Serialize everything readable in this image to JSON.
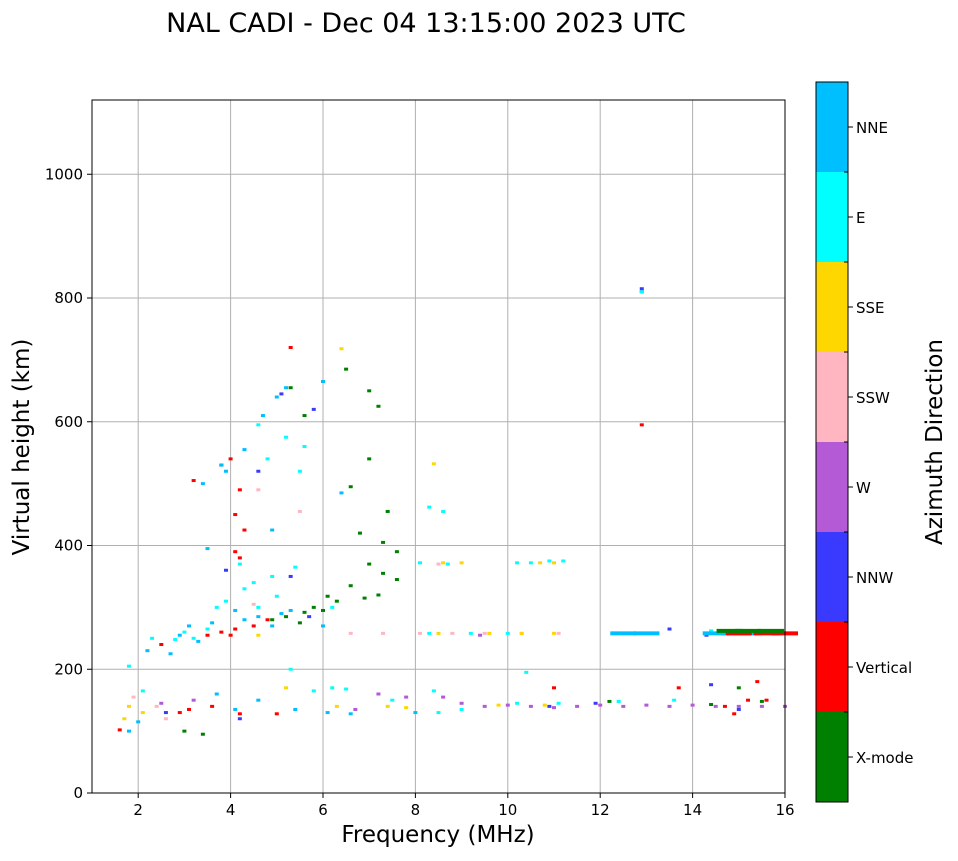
{
  "chart_data": {
    "type": "scatter",
    "title": "NAL CADI - Dec 04 13:15:00 2023 UTC",
    "xlabel": "Frequency (MHz)",
    "ylabel": "Virtual height (km)",
    "xlim": [
      1,
      16
    ],
    "ylim": [
      0,
      1120
    ],
    "xticks": [
      2,
      4,
      6,
      8,
      10,
      12,
      14,
      16
    ],
    "yticks": [
      0,
      200,
      400,
      600,
      800,
      1000
    ],
    "grid": true,
    "colorbar": {
      "label": "Azimuth Direction",
      "categories": [
        {
          "label": "X-mode",
          "color": "#008000"
        },
        {
          "label": "Vertical",
          "color": "#ff0000"
        },
        {
          "label": "NNW",
          "color": "#3a3aff"
        },
        {
          "label": "W",
          "color": "#b45ad6"
        },
        {
          "label": "SSW",
          "color": "#ffb6c1"
        },
        {
          "label": "SSE",
          "color": "#ffd700"
        },
        {
          "label": "E",
          "color": "#00ffff"
        },
        {
          "label": "NNE",
          "color": "#00bfff"
        }
      ]
    },
    "series": [
      {
        "name": "X-mode",
        "points": [
          [
            5.3,
            655
          ],
          [
            5.6,
            610
          ],
          [
            6.5,
            685
          ],
          [
            7.0,
            650
          ],
          [
            7.2,
            625
          ],
          [
            7.0,
            540
          ],
          [
            6.6,
            495
          ],
          [
            7.4,
            455
          ],
          [
            6.8,
            420
          ],
          [
            7.3,
            405
          ],
          [
            7.6,
            390
          ],
          [
            7.0,
            370
          ],
          [
            7.3,
            355
          ],
          [
            7.6,
            345
          ],
          [
            6.6,
            335
          ],
          [
            7.2,
            320
          ],
          [
            6.9,
            315
          ],
          [
            6.3,
            310
          ],
          [
            5.8,
            300
          ],
          [
            6.0,
            295
          ],
          [
            5.6,
            292
          ],
          [
            5.2,
            285
          ],
          [
            4.9,
            280
          ],
          [
            5.5,
            275
          ],
          [
            6.1,
            318
          ],
          [
            3.0,
            100
          ],
          [
            3.4,
            95
          ],
          [
            14.4,
            143
          ],
          [
            15.0,
            170
          ],
          [
            15.5,
            148
          ],
          [
            12.2,
            148
          ]
        ]
      },
      {
        "name": "Vertical",
        "points": [
          [
            5.3,
            720
          ],
          [
            12.9,
            595
          ],
          [
            4.0,
            540
          ],
          [
            3.8,
            530
          ],
          [
            3.2,
            505
          ],
          [
            4.2,
            490
          ],
          [
            4.1,
            450
          ],
          [
            4.3,
            425
          ],
          [
            4.1,
            390
          ],
          [
            4.2,
            380
          ],
          [
            2.5,
            240
          ],
          [
            3.5,
            255
          ],
          [
            3.8,
            260
          ],
          [
            4.1,
            265
          ],
          [
            4.5,
            270
          ],
          [
            4.8,
            280
          ],
          [
            4.0,
            255
          ],
          [
            1.6,
            102
          ],
          [
            2.9,
            130
          ],
          [
            3.1,
            135
          ],
          [
            4.2,
            128
          ],
          [
            5.0,
            128
          ],
          [
            3.6,
            140
          ],
          [
            14.9,
            128
          ],
          [
            15.2,
            150
          ],
          [
            15.6,
            150
          ],
          [
            14.7,
            140
          ],
          [
            13.7,
            170
          ],
          [
            15.4,
            180
          ],
          [
            11.0,
            170
          ],
          [
            12.9,
            810
          ]
        ]
      },
      {
        "name": "NNW",
        "points": [
          [
            5.1,
            645
          ],
          [
            5.8,
            620
          ],
          [
            4.6,
            520
          ],
          [
            3.9,
            360
          ],
          [
            5.3,
            350
          ],
          [
            5.7,
            285
          ],
          [
            12.9,
            815
          ],
          [
            15.0,
            135
          ],
          [
            14.4,
            175
          ],
          [
            13.5,
            265
          ],
          [
            14.3,
            255
          ],
          [
            15.3,
            260
          ],
          [
            15.8,
            262
          ],
          [
            10.9,
            140
          ],
          [
            11.9,
            145
          ],
          [
            4.2,
            120
          ],
          [
            2.6,
            130
          ]
        ]
      },
      {
        "name": "W",
        "points": [
          [
            8.6,
            155
          ],
          [
            9.0,
            145
          ],
          [
            9.5,
            140
          ],
          [
            10.0,
            142
          ],
          [
            10.5,
            140
          ],
          [
            11.0,
            138
          ],
          [
            11.5,
            140
          ],
          [
            12.0,
            142
          ],
          [
            12.5,
            140
          ],
          [
            13.0,
            142
          ],
          [
            13.5,
            140
          ],
          [
            14.0,
            142
          ],
          [
            14.5,
            140
          ],
          [
            15.0,
            140
          ],
          [
            15.5,
            140
          ],
          [
            16.0,
            140
          ],
          [
            7.8,
            155
          ],
          [
            7.2,
            160
          ],
          [
            6.7,
            135
          ],
          [
            2.5,
            145
          ],
          [
            3.2,
            150
          ],
          [
            9.4,
            255
          ]
        ]
      },
      {
        "name": "SSW",
        "points": [
          [
            1.9,
            155
          ],
          [
            2.4,
            140
          ],
          [
            2.6,
            120
          ],
          [
            6.6,
            258
          ],
          [
            7.3,
            258
          ],
          [
            8.1,
            258
          ],
          [
            8.8,
            258
          ],
          [
            9.5,
            258
          ],
          [
            10.3,
            258
          ],
          [
            11.1,
            258
          ],
          [
            8.5,
            370
          ],
          [
            5.5,
            455
          ],
          [
            4.6,
            490
          ],
          [
            4.5,
            305
          ]
        ]
      },
      {
        "name": "SSE",
        "points": [
          [
            6.4,
            718
          ],
          [
            8.4,
            532
          ],
          [
            8.6,
            372
          ],
          [
            9.0,
            372
          ],
          [
            10.7,
            372
          ],
          [
            11.0,
            372
          ],
          [
            4.6,
            255
          ],
          [
            8.5,
            258
          ],
          [
            9.6,
            258
          ],
          [
            10.3,
            258
          ],
          [
            11.0,
            258
          ],
          [
            1.8,
            140
          ],
          [
            2.1,
            130
          ],
          [
            1.7,
            120
          ],
          [
            7.8,
            138
          ],
          [
            7.4,
            140
          ],
          [
            6.3,
            140
          ],
          [
            5.2,
            170
          ],
          [
            9.8,
            142
          ],
          [
            10.8,
            142
          ]
        ]
      },
      {
        "name": "E",
        "points": [
          [
            4.6,
            595
          ],
          [
            5.2,
            575
          ],
          [
            5.6,
            560
          ],
          [
            4.8,
            540
          ],
          [
            5.5,
            520
          ],
          [
            4.2,
            370
          ],
          [
            5.4,
            365
          ],
          [
            4.3,
            330
          ],
          [
            4.5,
            340
          ],
          [
            4.9,
            350
          ],
          [
            5.0,
            318
          ],
          [
            6.2,
            300
          ],
          [
            4.6,
            300
          ],
          [
            3.0,
            260
          ],
          [
            3.2,
            250
          ],
          [
            3.5,
            265
          ],
          [
            3.7,
            300
          ],
          [
            3.9,
            310
          ],
          [
            2.3,
            250
          ],
          [
            2.8,
            248
          ],
          [
            8.6,
            455
          ],
          [
            8.3,
            462
          ],
          [
            8.1,
            372
          ],
          [
            8.7,
            370
          ],
          [
            10.2,
            372
          ],
          [
            10.5,
            372
          ],
          [
            10.9,
            375
          ],
          [
            11.2,
            375
          ],
          [
            12.3,
            258
          ],
          [
            12.8,
            258
          ],
          [
            13.2,
            258
          ],
          [
            8.3,
            258
          ],
          [
            9.2,
            258
          ],
          [
            10.0,
            258
          ],
          [
            14.4,
            262
          ],
          [
            8.4,
            165
          ],
          [
            8.5,
            130
          ],
          [
            9.0,
            135
          ],
          [
            10.2,
            145
          ],
          [
            11.1,
            145
          ],
          [
            12.4,
            148
          ],
          [
            13.6,
            150
          ],
          [
            5.8,
            165
          ],
          [
            6.2,
            170
          ],
          [
            6.5,
            168
          ],
          [
            7.5,
            150
          ],
          [
            1.8,
            205
          ],
          [
            2.1,
            165
          ],
          [
            5.3,
            200
          ],
          [
            10.4,
            195
          ],
          [
            12.9,
            810
          ]
        ]
      },
      {
        "name": "NNE",
        "points": [
          [
            5.2,
            655
          ],
          [
            6.0,
            665
          ],
          [
            5.0,
            640
          ],
          [
            4.7,
            610
          ],
          [
            4.3,
            555
          ],
          [
            3.8,
            530
          ],
          [
            3.9,
            520
          ],
          [
            3.4,
            500
          ],
          [
            6.4,
            485
          ],
          [
            4.9,
            425
          ],
          [
            3.5,
            395
          ],
          [
            3.6,
            275
          ],
          [
            4.3,
            280
          ],
          [
            4.6,
            285
          ],
          [
            5.1,
            290
          ],
          [
            2.9,
            255
          ],
          [
            3.1,
            270
          ],
          [
            4.1,
            295
          ],
          [
            4.9,
            270
          ],
          [
            5.3,
            295
          ],
          [
            6.0,
            270
          ],
          [
            2.2,
            230
          ],
          [
            2.7,
            225
          ],
          [
            3.3,
            245
          ],
          [
            1.8,
            100
          ],
          [
            2.0,
            115
          ],
          [
            3.7,
            160
          ],
          [
            4.1,
            135
          ],
          [
            4.6,
            150
          ],
          [
            6.1,
            130
          ],
          [
            6.6,
            128
          ],
          [
            8.0,
            130
          ],
          [
            5.4,
            135
          ]
        ]
      }
    ],
    "bands": [
      {
        "name": "NNE",
        "points": [
          [
            12.5,
            258
          ],
          [
            13.0,
            258
          ],
          [
            14.5,
            258
          ],
          [
            14.9,
            258
          ],
          [
            15.2,
            258
          ]
        ]
      },
      {
        "name": "Vertical",
        "points": [
          [
            15.0,
            258
          ],
          [
            15.6,
            258
          ],
          [
            16.0,
            258
          ]
        ]
      },
      {
        "name": "X-mode",
        "points": [
          [
            14.8,
            262
          ],
          [
            15.2,
            262
          ],
          [
            15.7,
            262
          ]
        ]
      }
    ]
  }
}
